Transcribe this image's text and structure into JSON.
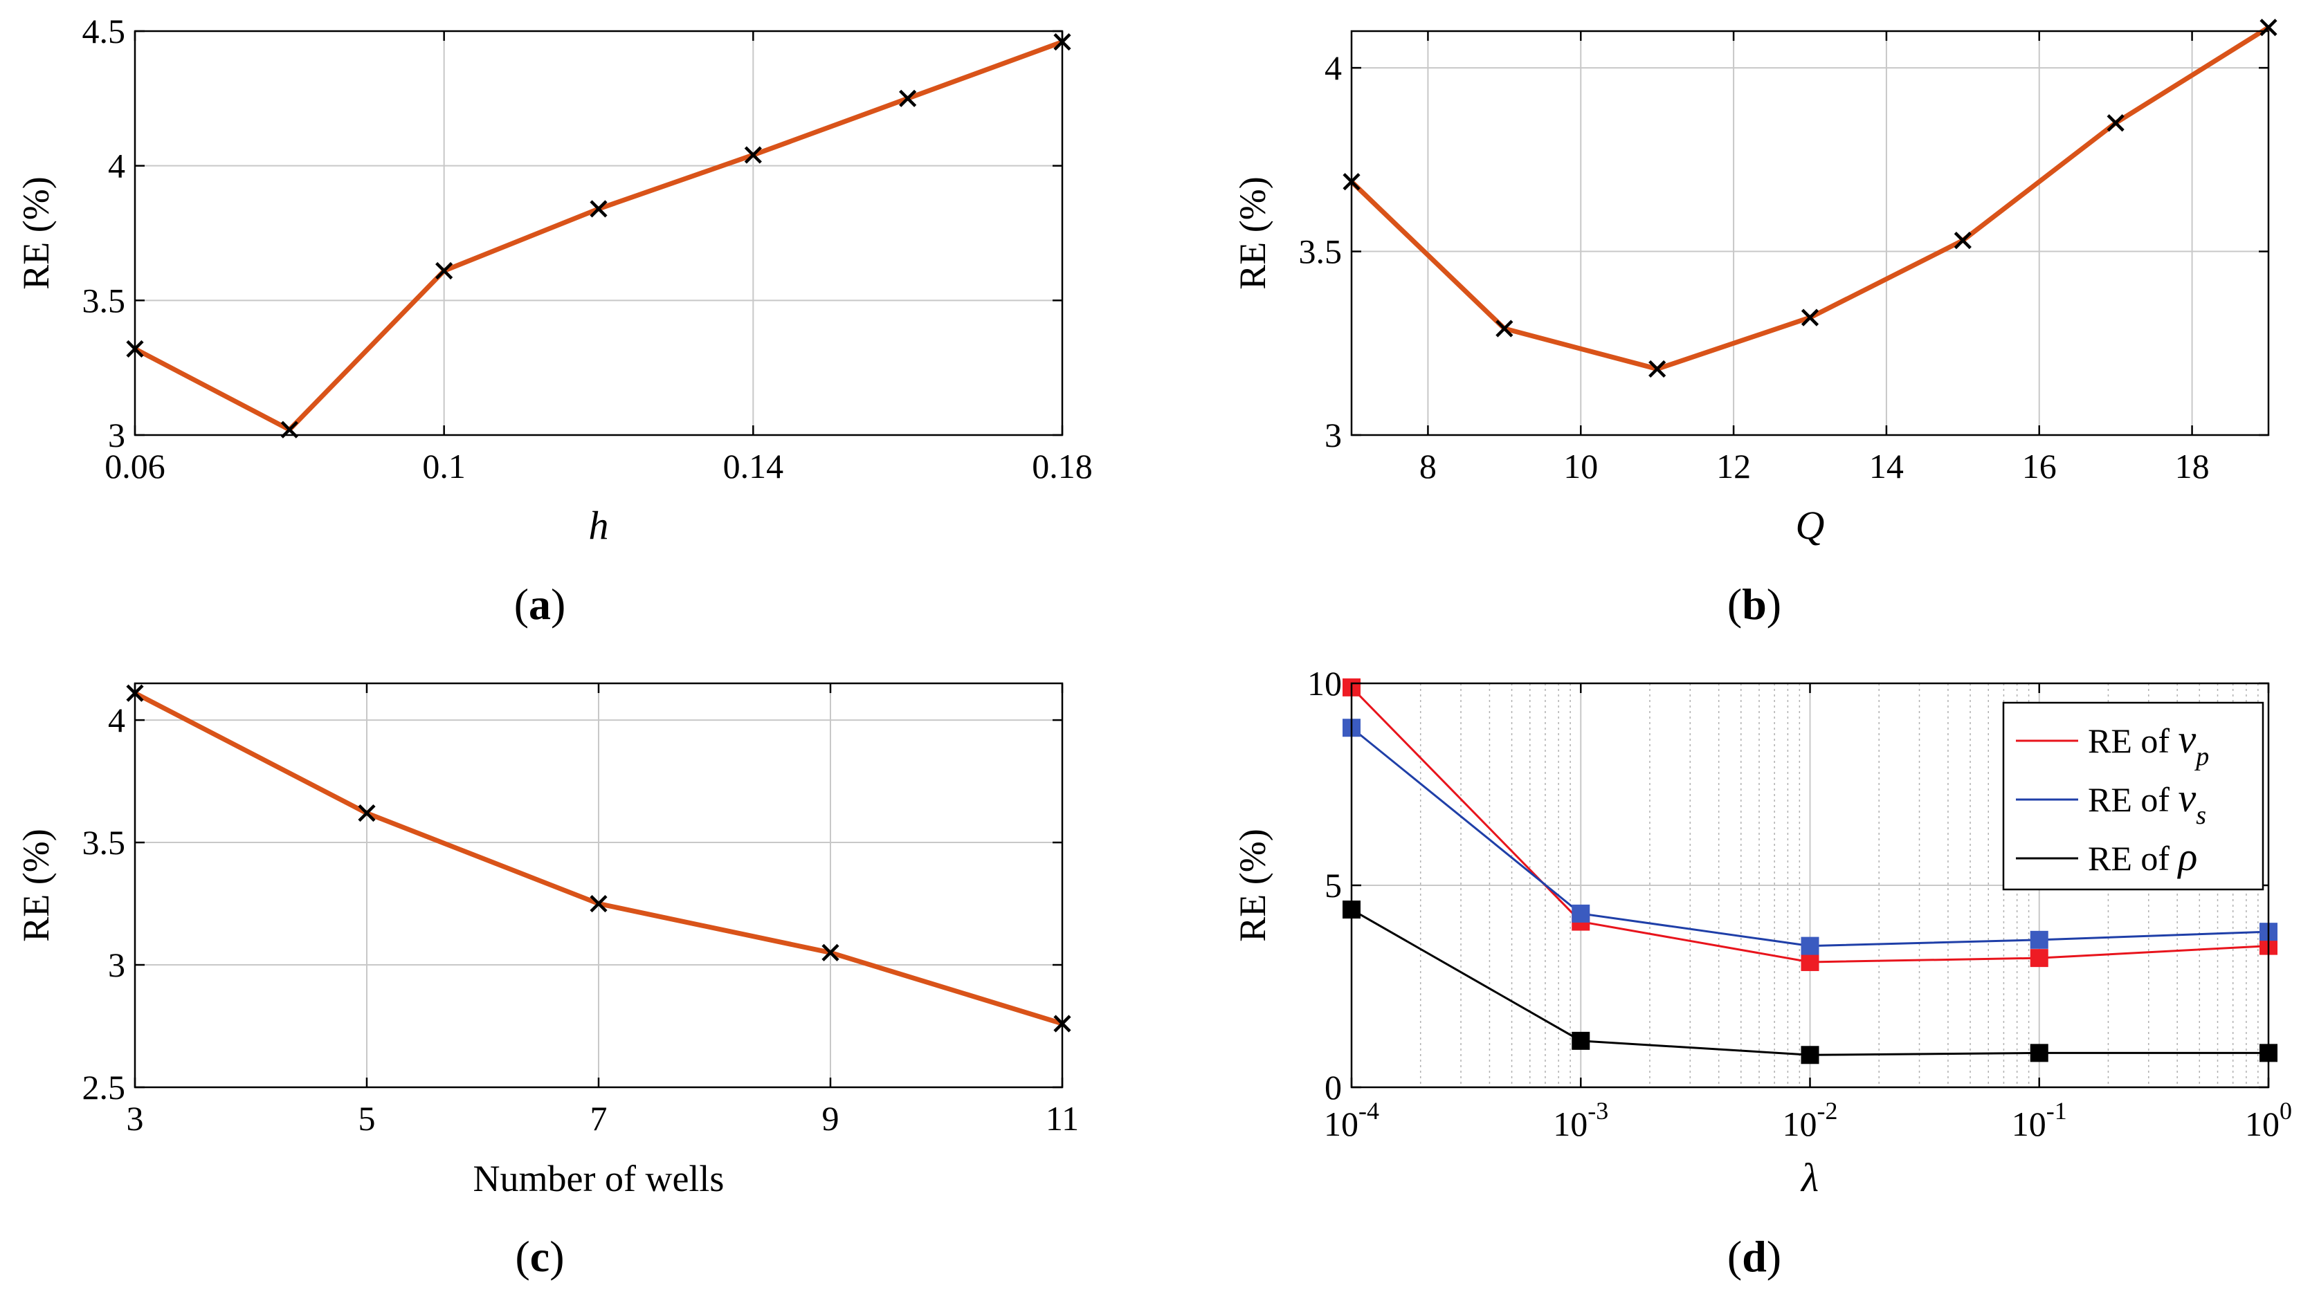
{
  "chart_data": [
    {
      "id": "a",
      "type": "line",
      "panel_label": "a",
      "x": [
        0.06,
        0.08,
        0.1,
        0.12,
        0.14,
        0.16,
        0.18
      ],
      "series": [
        {
          "name": "RE",
          "values": [
            3.32,
            3.02,
            3.61,
            3.84,
            4.04,
            4.25,
            4.46
          ],
          "color": "#d95319",
          "marker": "x"
        }
      ],
      "xlabel": "h",
      "ylabel": "RE (%)",
      "xlim": [
        0.06,
        0.18
      ],
      "ylim": [
        3,
        4.5
      ],
      "xticks": [
        0.06,
        0.1,
        0.14,
        0.18
      ],
      "xtick_labels": [
        "0.06",
        "0.1",
        "0.14",
        "0.18"
      ],
      "xgrid": [
        0.06,
        0.1,
        0.14,
        0.18
      ],
      "yticks": [
        3,
        3.5,
        4,
        4.5
      ],
      "ytick_labels": [
        "3",
        "3.5",
        "4",
        "4.5"
      ],
      "grid": true
    },
    {
      "id": "b",
      "type": "line",
      "panel_label": "b",
      "x": [
        7,
        9,
        11,
        13,
        15,
        17,
        19
      ],
      "series": [
        {
          "name": "RE",
          "values": [
            3.69,
            3.29,
            3.18,
            3.32,
            3.53,
            3.85,
            4.11
          ],
          "color": "#d95319",
          "marker": "x"
        }
      ],
      "xlabel": "Q",
      "ylabel": "RE (%)",
      "xlim": [
        7,
        19
      ],
      "ylim": [
        3,
        4.1
      ],
      "xticks": [
        8,
        10,
        12,
        14,
        16,
        18
      ],
      "xtick_labels": [
        "8",
        "10",
        "12",
        "14",
        "16",
        "18"
      ],
      "xgrid": [
        8,
        10,
        12,
        14,
        16,
        18
      ],
      "yticks": [
        3,
        3.5,
        4
      ],
      "ytick_labels": [
        "3",
        "3.5",
        "4"
      ],
      "grid": true
    },
    {
      "id": "c",
      "type": "line",
      "panel_label": "c",
      "x": [
        3,
        5,
        7,
        9,
        11
      ],
      "series": [
        {
          "name": "RE",
          "values": [
            4.11,
            3.62,
            3.25,
            3.05,
            2.76
          ],
          "color": "#d95319",
          "marker": "x"
        }
      ],
      "xlabel": "Number of wells",
      "ylabel": "RE (%)",
      "xlim": [
        3,
        11
      ],
      "ylim": [
        2.5,
        4.15
      ],
      "xticks": [
        3,
        5,
        7,
        9,
        11
      ],
      "xtick_labels": [
        "3",
        "5",
        "7",
        "9",
        "11"
      ],
      "xgrid": [
        3,
        5,
        7,
        9,
        11
      ],
      "yticks": [
        2.5,
        3,
        3.5,
        4
      ],
      "ytick_labels": [
        "2.5",
        "3",
        "3.5",
        "4"
      ],
      "grid": true
    },
    {
      "id": "d",
      "type": "line",
      "panel_label": "d",
      "xscale": "log",
      "x": [
        0.0001,
        0.001,
        0.01,
        0.1,
        1
      ],
      "series": [
        {
          "name": "RE of v_p",
          "legend_prefix": "RE of ",
          "legend_sym": "v",
          "legend_sub": "p",
          "values": [
            9.9,
            4.1,
            3.1,
            3.2,
            3.5
          ],
          "color": "#e8141c",
          "marker_color": "#ee1c24"
        },
        {
          "name": "RE of v_s",
          "legend_prefix": "RE of ",
          "legend_sym": "v",
          "legend_sub": "s",
          "values": [
            8.9,
            4.3,
            3.5,
            3.65,
            3.85
          ],
          "color": "#1f3fa8",
          "marker_color": "#3b5bc0"
        },
        {
          "name": "RE of rho",
          "legend_prefix": "RE of ",
          "legend_sym": "ρ",
          "legend_sub": "",
          "values": [
            4.4,
            1.15,
            0.8,
            0.85,
            0.85
          ],
          "color": "#000000",
          "marker_color": "#000000"
        }
      ],
      "xlabel": "λ",
      "ylabel": "RE (%)",
      "xlim_exp": [
        -4,
        0
      ],
      "ylim": [
        0,
        10
      ],
      "xtick_base": "10",
      "xtick_exps": [
        "-4",
        "-3",
        "-2",
        "-1",
        "0"
      ],
      "yticks": [
        0,
        5,
        10
      ],
      "ytick_labels": [
        "0",
        "5",
        "10"
      ],
      "legend_location": "top-right",
      "grid": true
    }
  ]
}
